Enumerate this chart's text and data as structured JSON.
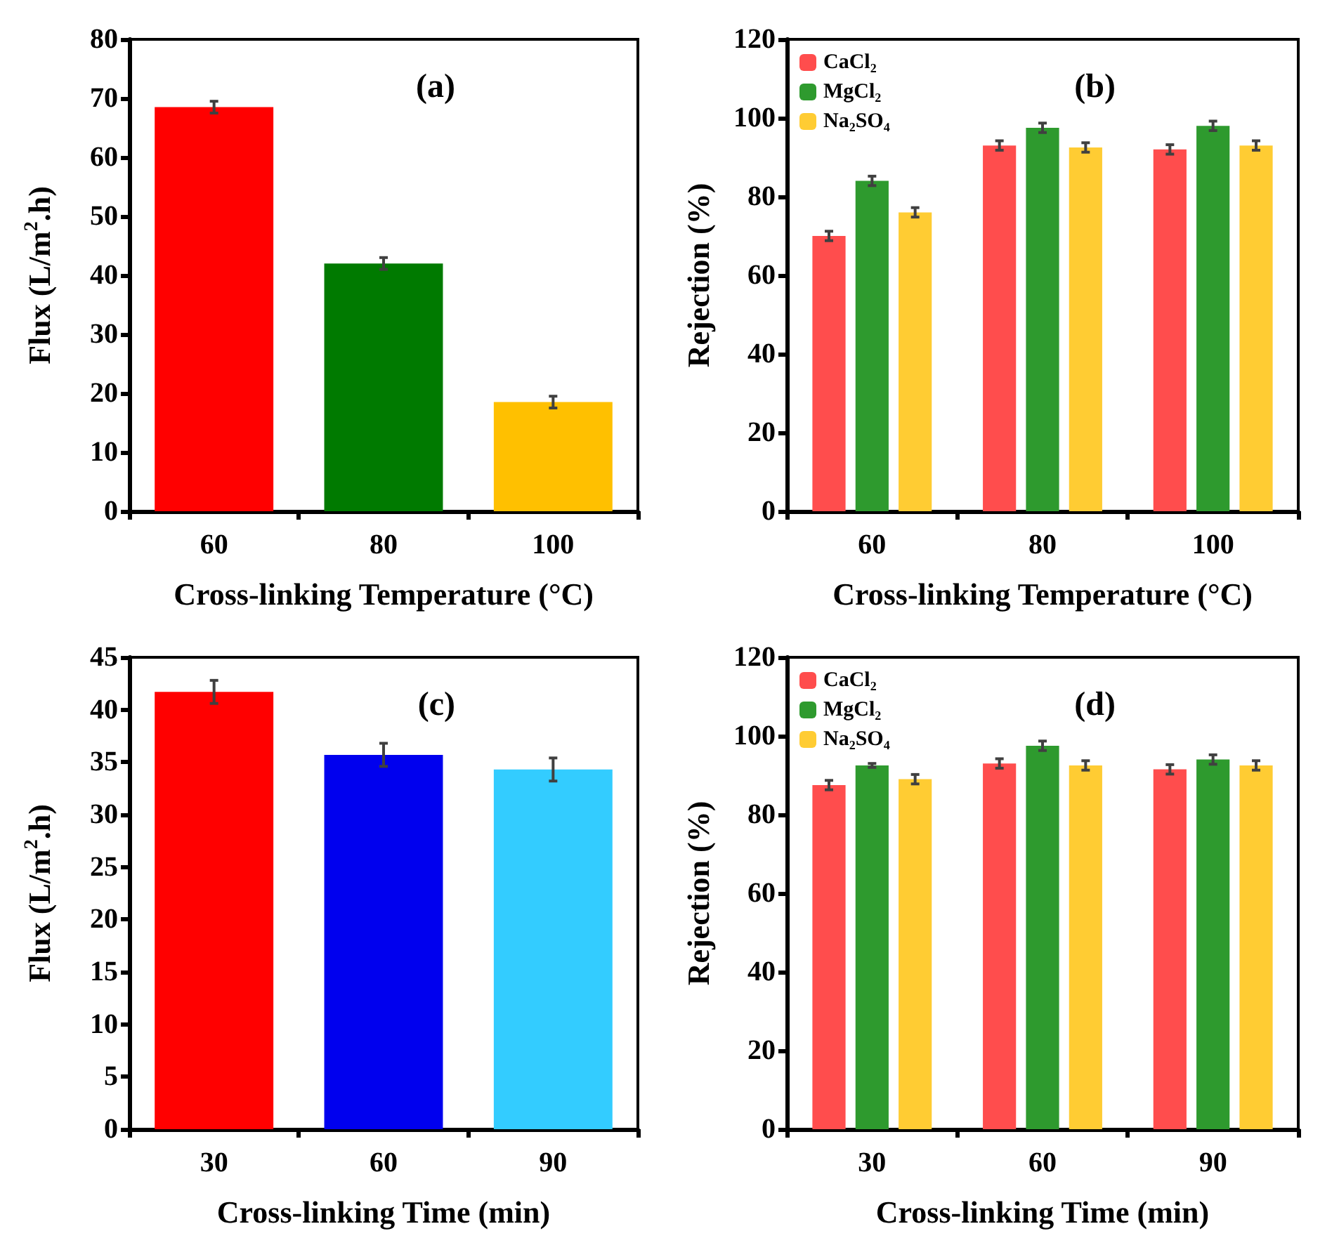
{
  "chart_data": [
    {
      "type": "bar",
      "categories": [
        "60",
        "80",
        "100"
      ],
      "values": [
        68.5,
        42,
        18.5
      ],
      "colors": [
        "#ff0000",
        "#007a00",
        "#ffc000"
      ],
      "errors": [
        1,
        1,
        1
      ],
      "xlabel": "Cross-linking Temperature (°C)",
      "ylabel": "Flux (L/m$^{2}$.h)",
      "ylim": [
        0,
        80
      ],
      "yticks": [
        0,
        10,
        20,
        30,
        40,
        50,
        60,
        70,
        80
      ],
      "annotations": [
        "(a)"
      ],
      "grid": false
    },
    {
      "type": "bar",
      "categories": [
        "60",
        "80",
        "100"
      ],
      "series": [
        {
          "name": "CaCl₂",
          "color": "#ff4d4d",
          "values": [
            70,
            93,
            92
          ],
          "errors": [
            1.2,
            1.2,
            1.2
          ]
        },
        {
          "name": "MgCl₂",
          "color": "#2e9a2e",
          "values": [
            84,
            97.5,
            98
          ],
          "errors": [
            1.2,
            1.2,
            1.2
          ]
        },
        {
          "name": "Na₂SO₄",
          "color": "#ffcc33",
          "values": [
            76,
            92.5,
            93
          ],
          "errors": [
            1.2,
            1.2,
            1.2
          ]
        }
      ],
      "xlabel": "Cross-linking Temperature (°C)",
      "ylabel": "Rejection (%)",
      "ylim": [
        0,
        120
      ],
      "yticks": [
        0,
        20,
        40,
        60,
        80,
        100,
        120
      ],
      "annotations": [
        "(b)"
      ],
      "legend": "top left",
      "grid": false
    },
    {
      "type": "bar",
      "categories": [
        "30",
        "60",
        "90"
      ],
      "values": [
        41.7,
        35.7,
        34.3
      ],
      "colors": [
        "#ff0000",
        "#0000ee",
        "#33ccff"
      ],
      "errors": [
        1.1,
        1.1,
        1.1
      ],
      "xlabel": "Cross-linking Time (min)",
      "ylabel": "Flux (L/m$^{2}$.h)",
      "ylim": [
        0,
        45
      ],
      "yticks": [
        0,
        5,
        10,
        15,
        20,
        25,
        30,
        35,
        40,
        45
      ],
      "annotations": [
        "(c)"
      ],
      "grid": false
    },
    {
      "type": "bar",
      "categories": [
        "30",
        "60",
        "90"
      ],
      "series": [
        {
          "name": "CaCl₂",
          "color": "#ff4d4d",
          "values": [
            87.5,
            93,
            91.5
          ],
          "errors": [
            1.2,
            1.2,
            1.2
          ]
        },
        {
          "name": "MgCl₂",
          "color": "#2e9a2e",
          "values": [
            92.5,
            97.5,
            94
          ],
          "errors": [
            0.5,
            1.2,
            1.2
          ]
        },
        {
          "name": "Na₂SO₄",
          "color": "#ffcc33",
          "values": [
            89,
            92.5,
            92.5
          ],
          "errors": [
            1.2,
            1.2,
            1.2
          ]
        }
      ],
      "xlabel": "Cross-linking Time (min)",
      "ylabel": "Rejection (%)",
      "ylim": [
        0,
        120
      ],
      "yticks": [
        0,
        20,
        40,
        60,
        80,
        100,
        120
      ],
      "annotations": [
        "(d)"
      ],
      "legend": "top left",
      "grid": false
    }
  ]
}
